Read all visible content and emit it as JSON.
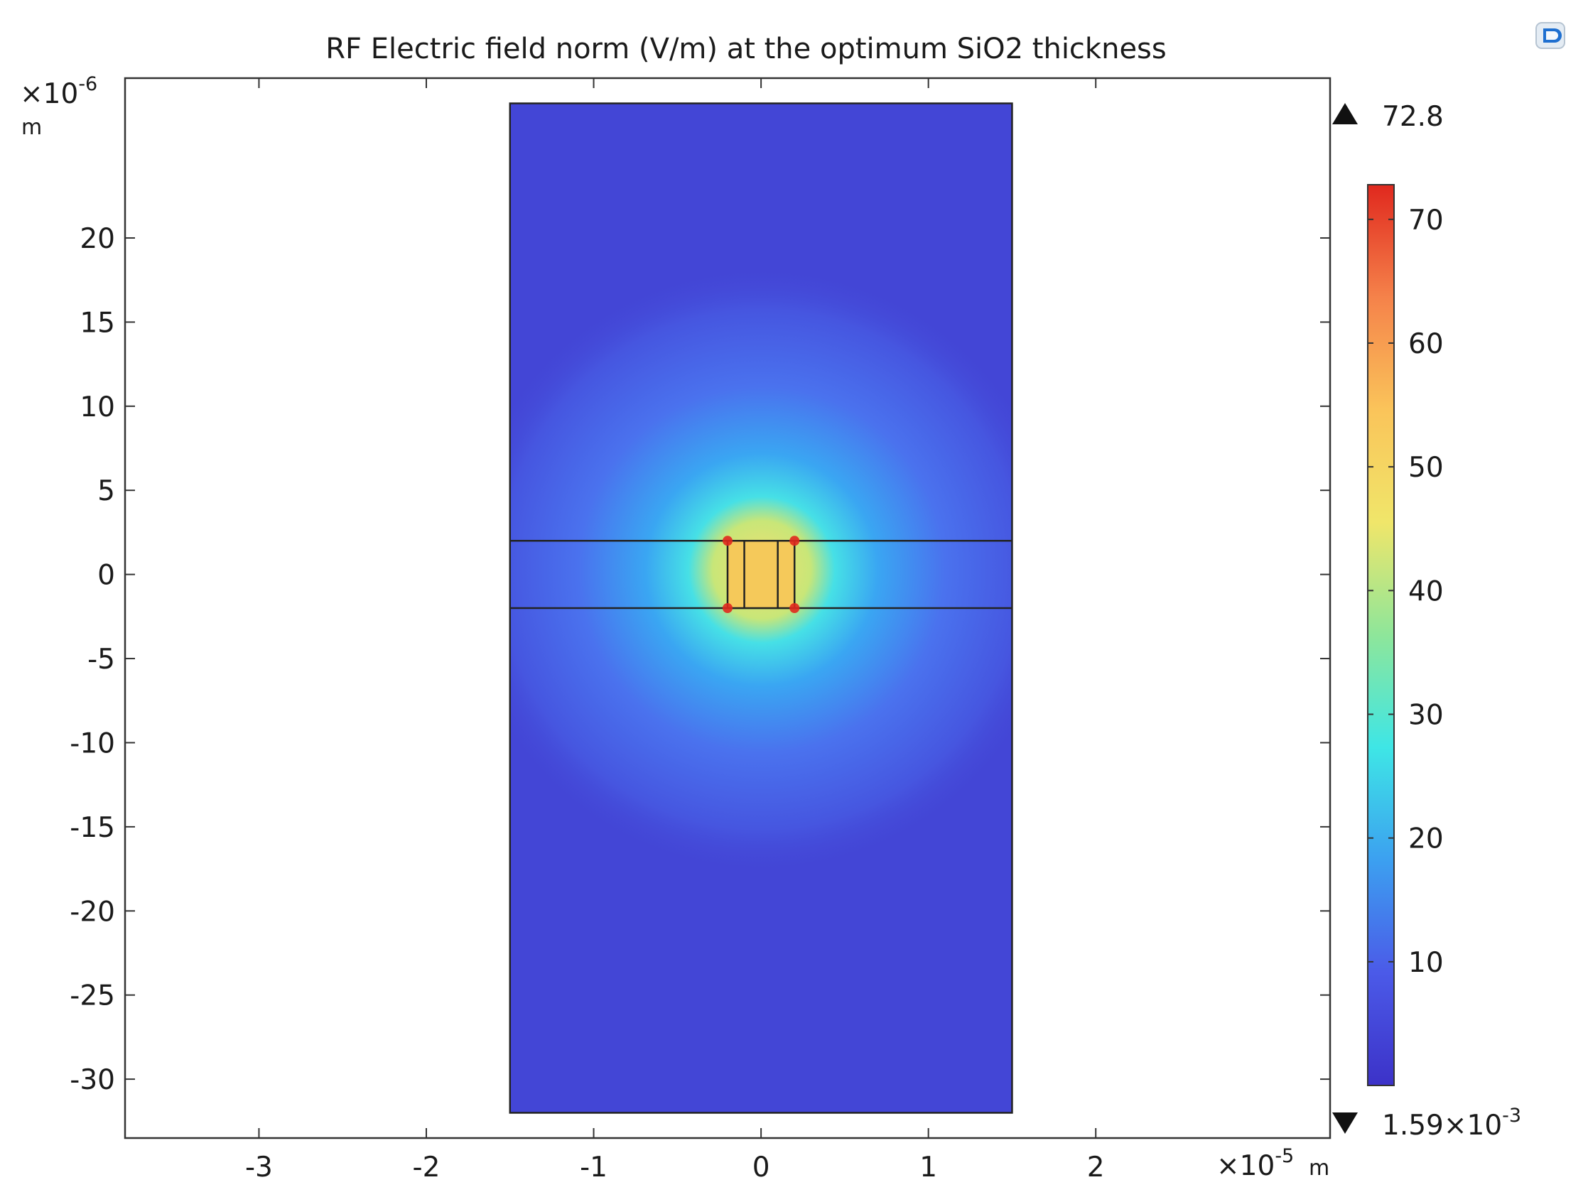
{
  "chart_data": {
    "type": "heatmap",
    "title": "RF Electric field norm (V/m) at the optimum SiO2 thickness",
    "x_axis": {
      "multiplier_base": "×10",
      "multiplier_exp": "-5",
      "unit": "m",
      "range": [
        -3.8,
        3.4
      ],
      "ticks": [
        -3,
        -2,
        -1,
        0,
        1,
        2
      ],
      "tick_labels": [
        "-3",
        "-2",
        "-1",
        "0",
        "1",
        "2"
      ]
    },
    "y_axis": {
      "multiplier_base": "×10",
      "multiplier_exp": "-6",
      "unit": "m",
      "range": [
        -33.5,
        29.5
      ],
      "ticks": [
        -30,
        -25,
        -20,
        -15,
        -10,
        -5,
        0,
        5,
        10,
        15,
        20
      ],
      "tick_labels": [
        "-30",
        "-25",
        "-20",
        "-15",
        "-10",
        "-5",
        "0",
        "5",
        "10",
        "15",
        "20"
      ]
    },
    "domain": {
      "x_min": -1.5,
      "x_max": 1.5,
      "y_min": -32,
      "y_max": 28
    },
    "layer": {
      "y_min": -2,
      "y_max": 2
    },
    "electrodes": {
      "x_min": -0.2,
      "x_max": 0.2,
      "inner_lines_x": [
        -0.1,
        0.1
      ]
    },
    "colorbar": {
      "max_label": "72.8",
      "min_label_base": "1.59×10",
      "min_label_exp": "-3",
      "ticks": [
        10,
        20,
        30,
        40,
        50,
        60,
        70
      ],
      "tick_labels": [
        "10",
        "20",
        "30",
        "40",
        "50",
        "60",
        "70"
      ],
      "range": [
        0.00159,
        72.8
      ],
      "colormap": [
        "#3c32c8",
        "#4b5ae8",
        "#3ca0f0",
        "#3ee6e6",
        "#8ee69a",
        "#f0e66a",
        "#fac45a",
        "#f5824a",
        "#e0281e"
      ]
    },
    "colors": {
      "background_field": "#4346d6",
      "electrode_fill": "#f5c95a",
      "hot_spot": "#e0281e"
    }
  }
}
